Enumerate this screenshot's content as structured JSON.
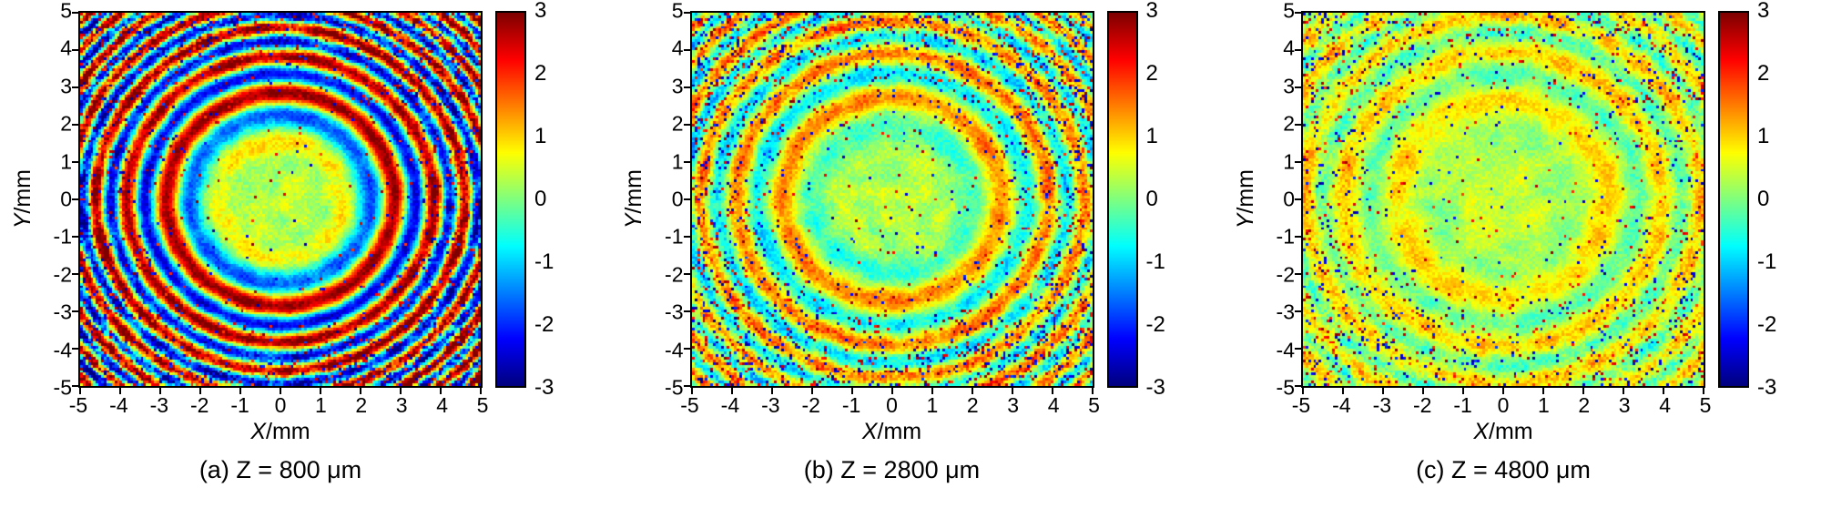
{
  "figure": {
    "panels": [
      {
        "caption": "(a) Z = 800 μm",
        "xlabel_var": "X",
        "xlabel_unit": "/mm",
        "ylabel_var": "Y",
        "ylabel_unit": "/mm",
        "xticks": [
          "-5",
          "-4",
          "-3",
          "-2",
          "-1",
          "0",
          "1",
          "2",
          "3",
          "4",
          "5"
        ],
        "yticks": [
          "5",
          "4",
          "3",
          "2",
          "1",
          "0",
          "-1",
          "-2",
          "-3",
          "-4",
          "-5"
        ],
        "colorbar_ticks": [
          "3",
          "2",
          "1",
          "0",
          "-1",
          "-2",
          "-3"
        ]
      },
      {
        "caption": "(b) Z = 2800 μm",
        "xlabel_var": "X",
        "xlabel_unit": "/mm",
        "ylabel_var": "Y",
        "ylabel_unit": "/mm",
        "xticks": [
          "-5",
          "-4",
          "-3",
          "-2",
          "-1",
          "0",
          "1",
          "2",
          "3",
          "4",
          "5"
        ],
        "yticks": [
          "5",
          "4",
          "3",
          "2",
          "1",
          "0",
          "-1",
          "-2",
          "-3",
          "-4",
          "-5"
        ],
        "colorbar_ticks": [
          "3",
          "2",
          "1",
          "0",
          "-1",
          "-2",
          "-3"
        ]
      },
      {
        "caption": "(c) Z = 4800 μm",
        "xlabel_var": "X",
        "xlabel_unit": "/mm",
        "ylabel_var": "Y",
        "ylabel_unit": "/mm",
        "xticks": [
          "-5",
          "-4",
          "-3",
          "-2",
          "-1",
          "0",
          "1",
          "2",
          "3",
          "4",
          "5"
        ],
        "yticks": [
          "5",
          "4",
          "3",
          "2",
          "1",
          "0",
          "-1",
          "-2",
          "-3",
          "-4",
          "-5"
        ],
        "colorbar_ticks": [
          "3",
          "2",
          "1",
          "0",
          "-1",
          "-2",
          "-3"
        ]
      }
    ]
  },
  "chart_data": [
    {
      "type": "heatmap",
      "title": "(a) Z = 800 μm",
      "xlabel": "X/mm",
      "ylabel": "Y/mm",
      "x_range": [
        -5,
        5
      ],
      "y_range": [
        -5,
        5
      ],
      "value_range": [
        -3,
        3
      ],
      "xticks": [
        -5,
        -4,
        -3,
        -2,
        -1,
        0,
        1,
        2,
        3,
        4,
        5
      ],
      "yticks": [
        -5,
        -4,
        -3,
        -2,
        -1,
        0,
        1,
        2,
        3,
        4,
        5
      ],
      "colorbar_ticks": [
        3,
        2,
        1,
        0,
        -1,
        -2,
        -3
      ],
      "colormap": "jet",
      "pattern": "strong concentric circular interference fringes (Fresnel-like rings, spacing decreasing outward) around a uniform yellow-green center; heavy red/blue speckle noise toward edges and corners",
      "render_params": {
        "seed": 11,
        "base": 0.3,
        "ring_amp": 2.6,
        "ring_freq": 0.95,
        "ring_phase": 0.0,
        "ring_inner": 1.2,
        "ring_ramp": 1.4,
        "noise_base": 0.5,
        "noise_edge": 2.2,
        "noise_edge_start": 3.2,
        "outlier_base": 0.012,
        "outlier_edge": 0.1
      }
    },
    {
      "type": "heatmap",
      "title": "(b) Z = 2800 μm",
      "xlabel": "X/mm",
      "ylabel": "Y/mm",
      "x_range": [
        -5,
        5
      ],
      "y_range": [
        -5,
        5
      ],
      "value_range": [
        -3,
        3
      ],
      "xticks": [
        -5,
        -4,
        -3,
        -2,
        -1,
        0,
        1,
        2,
        3,
        4,
        5
      ],
      "yticks": [
        -5,
        -4,
        -3,
        -2,
        -1,
        0,
        1,
        2,
        3,
        4,
        5
      ],
      "colorbar_ticks": [
        3,
        2,
        1,
        0,
        -1,
        -2,
        -3
      ],
      "colormap": "jet",
      "pattern": "weaker, fragmented concentric fringes with scattered red/blue speckle outliers along ring crests; yellow-green center, cyan-green background",
      "render_params": {
        "seed": 23,
        "base": 0.32,
        "ring_amp": 1.15,
        "ring_freq": 0.8,
        "ring_phase": 1.8,
        "ring_inner": 1.0,
        "ring_ramp": 1.6,
        "noise_base": 0.5,
        "noise_edge": 1.15,
        "noise_edge_start": 3.0,
        "outlier_base": 0.02,
        "outlier_edge": 0.14
      }
    },
    {
      "type": "heatmap",
      "title": "(c) Z = 4800 μm",
      "xlabel": "X/mm",
      "ylabel": "Y/mm",
      "x_range": [
        -5,
        5
      ],
      "y_range": [
        -5,
        5
      ],
      "value_range": [
        -3,
        3
      ],
      "xticks": [
        -5,
        -4,
        -3,
        -2,
        -1,
        0,
        1,
        2,
        3,
        4,
        5
      ],
      "yticks": [
        -5,
        -4,
        -3,
        -2,
        -1,
        0,
        1,
        2,
        3,
        4,
        5
      ],
      "colorbar_ticks": [
        3,
        2,
        1,
        0,
        -1,
        -2,
        -3
      ],
      "colormap": "jet",
      "pattern": "mostly uniform yellow-green field with very faint broad rings and sparse red/blue speckle dots near the periphery",
      "render_params": {
        "seed": 37,
        "base": 0.4,
        "ring_amp": 0.6,
        "ring_freq": 0.7,
        "ring_phase": 3.0,
        "ring_inner": 0.8,
        "ring_ramp": 2.0,
        "noise_base": 0.45,
        "noise_edge": 0.95,
        "noise_edge_start": 3.2,
        "outlier_base": 0.015,
        "outlier_edge": 0.09
      }
    }
  ]
}
